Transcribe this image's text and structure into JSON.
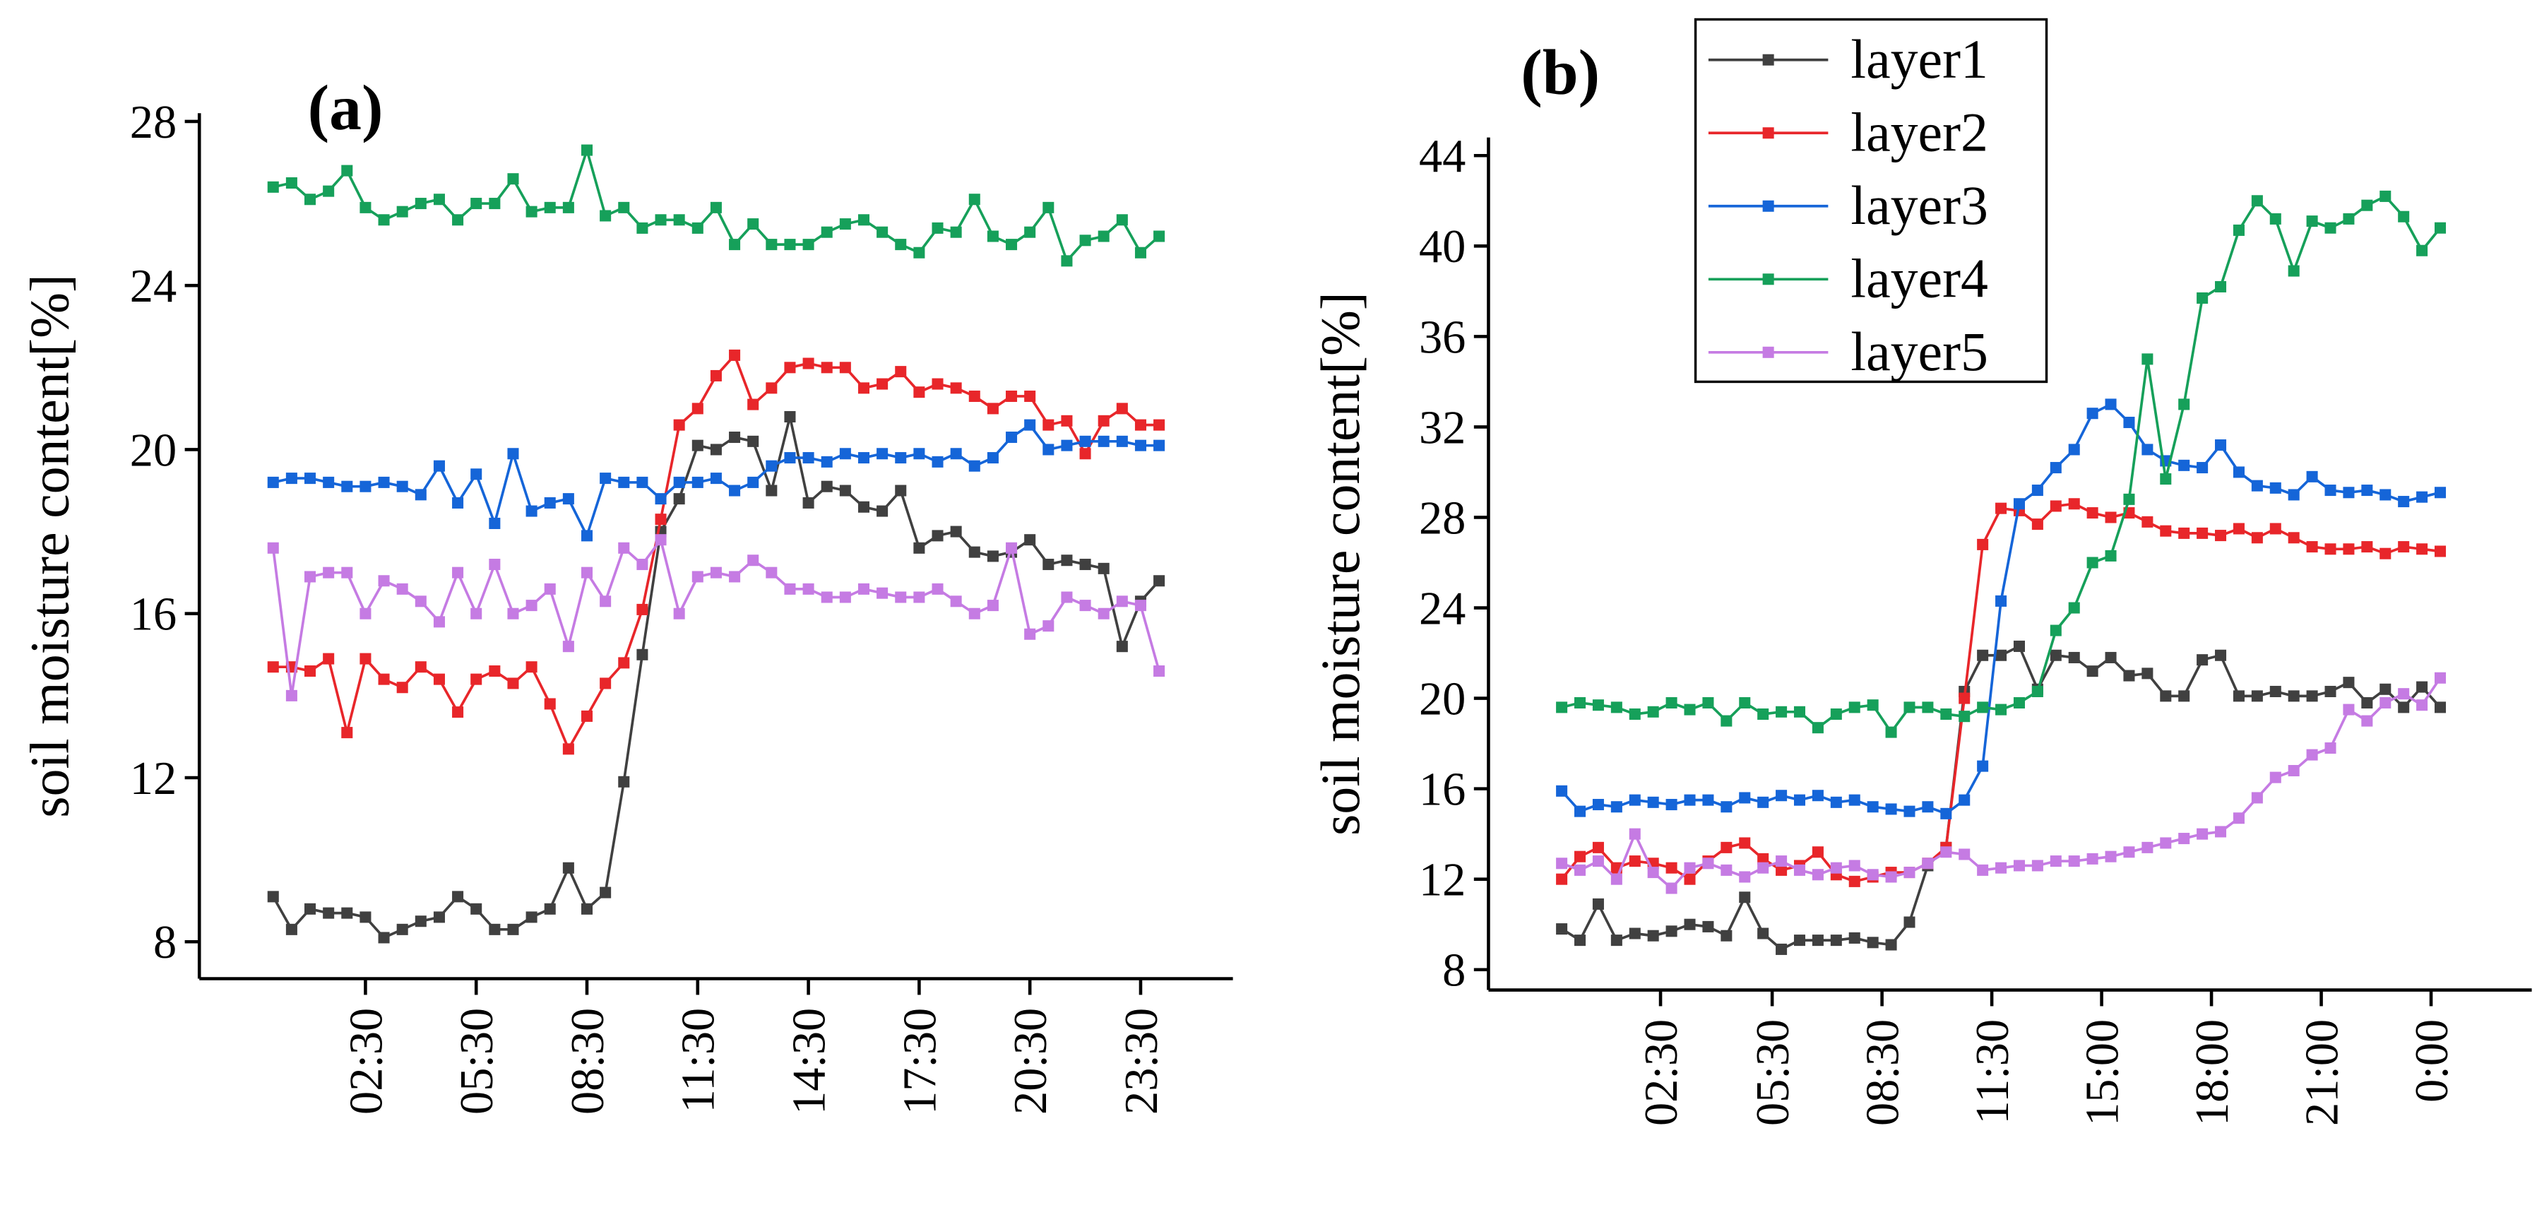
{
  "chart_data": [
    {
      "type": "line",
      "label": "(a)",
      "ylabel": "soil moisture content[%]",
      "x": [
        0,
        0.5,
        1,
        1.5,
        2,
        2.5,
        3,
        3.5,
        4,
        4.5,
        5,
        5.5,
        6,
        6.5,
        7,
        7.5,
        8,
        8.5,
        9,
        9.5,
        10,
        10.5,
        11,
        11.5,
        12,
        12.5,
        13,
        13.5,
        14,
        14.5,
        15,
        15.5,
        16,
        16.5,
        17,
        17.5,
        18,
        18.5,
        19,
        19.5,
        20,
        20.5,
        21,
        21.5,
        22,
        22.5,
        23,
        23.5,
        24
      ],
      "xlim": [
        -2,
        26
      ],
      "xticks": [
        {
          "value": 2.5,
          "label": "02:30"
        },
        {
          "value": 5.5,
          "label": "05:30"
        },
        {
          "value": 8.5,
          "label": "08:30"
        },
        {
          "value": 11.5,
          "label": "11:30"
        },
        {
          "value": 14.5,
          "label": "14:30"
        },
        {
          "value": 17.5,
          "label": "17:30"
        },
        {
          "value": 20.5,
          "label": "20:30"
        },
        {
          "value": 23.5,
          "label": "23:30"
        }
      ],
      "ylim": [
        7.1,
        28.2
      ],
      "yticks": [
        8,
        12,
        16,
        20,
        24,
        28
      ],
      "legend": false,
      "series": [
        {
          "color": "#404040",
          "values": [
            9.1,
            8.3,
            8.8,
            8.7,
            8.7,
            8.6,
            8.1,
            8.3,
            8.5,
            8.6,
            9.1,
            8.8,
            8.3,
            8.3,
            8.6,
            8.8,
            9.8,
            8.8,
            9.2,
            11.9,
            15.0,
            18.0,
            18.8,
            20.1,
            20.0,
            20.3,
            20.2,
            19.0,
            20.8,
            18.7,
            19.1,
            19.0,
            18.6,
            18.5,
            19.0,
            17.6,
            17.9,
            18.0,
            17.5,
            17.4,
            17.5,
            17.8,
            17.2,
            17.3,
            17.2,
            17.1,
            15.2,
            16.3,
            16.8
          ]
        },
        {
          "color": "#e8262a",
          "values": [
            14.7,
            14.7,
            14.6,
            14.9,
            13.1,
            14.9,
            14.4,
            14.2,
            14.7,
            14.4,
            13.6,
            14.4,
            14.6,
            14.3,
            14.7,
            13.8,
            12.7,
            13.5,
            14.3,
            14.8,
            16.1,
            18.3,
            20.6,
            21.0,
            21.8,
            22.3,
            21.1,
            21.5,
            22.0,
            22.1,
            22.0,
            22.0,
            21.5,
            21.6,
            21.9,
            21.4,
            21.6,
            21.5,
            21.3,
            21.0,
            21.3,
            21.3,
            20.6,
            20.7,
            19.9,
            20.7,
            21.0,
            20.6,
            20.6
          ]
        },
        {
          "color": "#1565d8",
          "values": [
            19.2,
            19.3,
            19.3,
            19.2,
            19.1,
            19.1,
            19.2,
            19.1,
            18.9,
            19.6,
            18.7,
            19.4,
            18.2,
            19.9,
            18.5,
            18.7,
            18.8,
            17.9,
            19.3,
            19.2,
            19.2,
            18.8,
            19.2,
            19.2,
            19.3,
            19.0,
            19.2,
            19.6,
            19.8,
            19.8,
            19.7,
            19.9,
            19.8,
            19.9,
            19.8,
            19.9,
            19.7,
            19.9,
            19.6,
            19.8,
            20.3,
            20.6,
            20.0,
            20.1,
            20.2,
            20.2,
            20.2,
            20.1,
            20.1
          ]
        },
        {
          "color": "#16a05a",
          "values": [
            26.4,
            26.5,
            26.1,
            26.3,
            26.8,
            25.9,
            25.6,
            25.8,
            26.0,
            26.1,
            25.6,
            26.0,
            26.0,
            26.6,
            25.8,
            25.9,
            25.9,
            27.3,
            25.7,
            25.9,
            25.4,
            25.6,
            25.6,
            25.4,
            25.9,
            25.0,
            25.5,
            25.0,
            25.0,
            25.0,
            25.3,
            25.5,
            25.6,
            25.3,
            25.0,
            24.8,
            25.4,
            25.3,
            26.1,
            25.2,
            25.0,
            25.3,
            25.9,
            24.6,
            25.1,
            25.2,
            25.6,
            24.8,
            25.2
          ]
        },
        {
          "color": "#c57be3",
          "values": [
            17.6,
            14.0,
            16.9,
            17.0,
            17.0,
            16.0,
            16.8,
            16.6,
            16.3,
            15.8,
            17.0,
            16.0,
            17.2,
            16.0,
            16.2,
            16.6,
            15.2,
            17.0,
            16.3,
            17.6,
            17.2,
            17.8,
            16.0,
            16.9,
            17.0,
            16.9,
            17.3,
            17.0,
            16.6,
            16.6,
            16.4,
            16.4,
            16.6,
            16.5,
            16.4,
            16.4,
            16.6,
            16.3,
            16.0,
            16.2,
            17.6,
            15.5,
            15.7,
            16.4,
            16.2,
            16.0,
            16.3,
            16.2,
            14.6
          ]
        }
      ]
    },
    {
      "type": "line",
      "label": "(b)",
      "ylabel": "soil moisture content[%]",
      "x": [
        0,
        0.5,
        1,
        1.5,
        2,
        2.5,
        3,
        3.5,
        4,
        4.5,
        5,
        5.5,
        6,
        6.5,
        7,
        7.5,
        8,
        8.5,
        9,
        9.5,
        10,
        10.5,
        11,
        11.5,
        12,
        12.5,
        13,
        13.5,
        14,
        14.5,
        15,
        15.5,
        16,
        16.5,
        17,
        17.5,
        18,
        18.5,
        19,
        19.5,
        20,
        20.5,
        21,
        21.5,
        22,
        22.5,
        23,
        23.5,
        24
      ],
      "xlim": [
        -2,
        26.5
      ],
      "xticks": [
        {
          "value": 2.7,
          "label": "02:30"
        },
        {
          "value": 5.75,
          "label": "05:30"
        },
        {
          "value": 8.75,
          "label": "08:30"
        },
        {
          "value": 11.75,
          "label": "11:30"
        },
        {
          "value": 14.75,
          "label": "15:00"
        },
        {
          "value": 17.75,
          "label": "18:00"
        },
        {
          "value": 20.75,
          "label": "21:00"
        },
        {
          "value": 23.75,
          "label": "0:00"
        }
      ],
      "ylim": [
        7.1,
        44.8
      ],
      "yticks": [
        8,
        12,
        16,
        20,
        24,
        28,
        32,
        36,
        40,
        44
      ],
      "legend": true,
      "series": [
        {
          "name": "layer1",
          "color": "#404040",
          "values": [
            9.8,
            9.3,
            10.9,
            9.3,
            9.6,
            9.5,
            9.7,
            10.0,
            9.9,
            9.5,
            11.2,
            9.6,
            8.9,
            9.3,
            9.3,
            9.3,
            9.4,
            9.2,
            9.1,
            10.1,
            12.6,
            13.4,
            20.3,
            21.9,
            21.9,
            22.3,
            20.4,
            21.9,
            21.8,
            21.2,
            21.8,
            21.0,
            21.1,
            20.1,
            20.1,
            21.7,
            21.9,
            20.1,
            20.1,
            20.3,
            20.1,
            20.1,
            20.3,
            20.7,
            19.8,
            20.4,
            19.6,
            20.5,
            19.6
          ]
        },
        {
          "name": "layer2",
          "color": "#e8262a",
          "values": [
            12.0,
            13.0,
            13.4,
            12.5,
            12.8,
            12.7,
            12.5,
            12.0,
            12.8,
            13.4,
            13.6,
            12.9,
            12.4,
            12.6,
            13.2,
            12.2,
            11.9,
            12.1,
            12.3,
            12.3,
            12.7,
            13.4,
            20.0,
            26.8,
            28.4,
            28.3,
            27.7,
            28.5,
            28.6,
            28.2,
            28.0,
            28.2,
            27.8,
            27.4,
            27.3,
            27.3,
            27.2,
            27.5,
            27.1,
            27.5,
            27.1,
            26.7,
            26.6,
            26.6,
            26.7,
            26.4,
            26.7,
            26.6,
            26.5
          ]
        },
        {
          "name": "layer3",
          "color": "#1565d8",
          "values": [
            15.9,
            15.0,
            15.3,
            15.2,
            15.5,
            15.4,
            15.3,
            15.5,
            15.5,
            15.2,
            15.6,
            15.4,
            15.7,
            15.5,
            15.7,
            15.4,
            15.5,
            15.2,
            15.1,
            15.0,
            15.2,
            14.9,
            15.5,
            17.0,
            24.3,
            28.6,
            29.2,
            30.2,
            31.0,
            32.6,
            33.0,
            32.2,
            31.0,
            30.5,
            30.3,
            30.2,
            31.2,
            30.0,
            29.4,
            29.3,
            29.0,
            29.8,
            29.2,
            29.1,
            29.2,
            29.0,
            28.7,
            28.9,
            29.1
          ]
        },
        {
          "name": "layer4",
          "color": "#16a05a",
          "values": [
            19.6,
            19.8,
            19.7,
            19.6,
            19.3,
            19.4,
            19.8,
            19.5,
            19.8,
            19.0,
            19.8,
            19.3,
            19.4,
            19.4,
            18.7,
            19.3,
            19.6,
            19.7,
            18.5,
            19.6,
            19.6,
            19.3,
            19.2,
            19.6,
            19.5,
            19.8,
            20.3,
            23.0,
            24.0,
            26.0,
            26.3,
            28.8,
            35.0,
            29.7,
            33.0,
            37.7,
            38.2,
            40.7,
            42.0,
            41.2,
            38.9,
            41.1,
            40.8,
            41.2,
            41.8,
            42.2,
            41.3,
            39.8,
            40.8
          ]
        },
        {
          "name": "layer5",
          "color": "#c57be3",
          "values": [
            12.7,
            12.4,
            12.8,
            12.0,
            14.0,
            12.3,
            11.6,
            12.5,
            12.7,
            12.4,
            12.1,
            12.5,
            12.8,
            12.4,
            12.2,
            12.5,
            12.6,
            12.2,
            12.1,
            12.3,
            12.7,
            13.2,
            13.1,
            12.4,
            12.5,
            12.6,
            12.6,
            12.8,
            12.8,
            12.9,
            13.0,
            13.2,
            13.4,
            13.6,
            13.8,
            14.0,
            14.1,
            14.7,
            15.6,
            16.5,
            16.8,
            17.5,
            17.8,
            19.5,
            19.0,
            19.8,
            20.2,
            19.7,
            20.9
          ]
        }
      ]
    }
  ]
}
